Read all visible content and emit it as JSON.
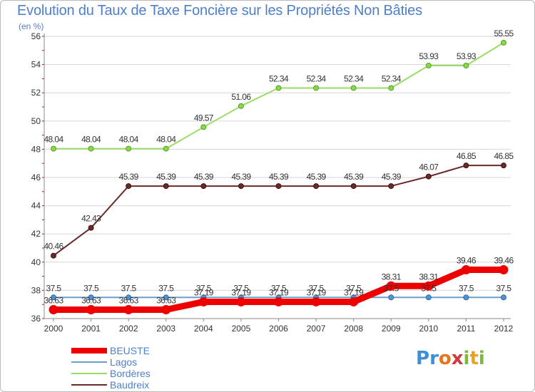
{
  "title": "Evolution du Taux de Taxe Foncière sur les Propriétés Non Bâties",
  "unit": "(en %)",
  "logo": {
    "text": "Proxiti",
    "letters": [
      "P",
      "r",
      "o",
      "x",
      "i",
      "t",
      "i"
    ],
    "colors": [
      "#3d8fd8",
      "#3d8fd8",
      "#e8741c",
      "#d23a3a",
      "#7fb83a",
      "#e8a21c",
      "#7fb83a"
    ]
  },
  "colors": {
    "BEUSTE": "#ee0000",
    "Lagos": "#6e9fc8",
    "Bordères": "#99dd66",
    "Baudreix": "#6b2a2a",
    "axis": "#888888",
    "grid": "#d7d7d7",
    "text": "#4f7fc8"
  },
  "chart_data": {
    "type": "line",
    "title": "Evolution du Taux de Taxe Foncière sur les Propriétés Non Bâties",
    "ylabel": "(en %)",
    "xlabel": "",
    "x": [
      "2000",
      "2001",
      "2002",
      "2003",
      "2004",
      "2005",
      "2006",
      "2007",
      "2008",
      "2009",
      "2010",
      "2011",
      "2012"
    ],
    "ylim": [
      36,
      56
    ],
    "yticks": [
      36,
      38,
      40,
      42,
      44,
      46,
      48,
      50,
      52,
      54,
      56
    ],
    "grid": "horizontal",
    "legend": "bottom-left",
    "series": [
      {
        "name": "BEUSTE",
        "values": [
          36.63,
          36.63,
          36.63,
          36.63,
          37.19,
          37.19,
          37.19,
          37.19,
          37.19,
          38.31,
          38.31,
          39.46,
          39.46
        ],
        "labels": [
          "36.63",
          "36.63",
          "36.63",
          "36.63",
          "37.19",
          "37.19",
          "37.19",
          "37.19",
          "37.19",
          "38.31",
          "38.31",
          "39.46",
          "39.46"
        ]
      },
      {
        "name": "Lagos",
        "values": [
          37.5,
          37.5,
          37.5,
          37.5,
          37.5,
          37.5,
          37.5,
          37.5,
          37.5,
          37.5,
          37.5,
          37.5,
          37.5
        ],
        "labels": [
          "37.5",
          "37.5",
          "37.5",
          "37.5",
          "37.5",
          "37.5",
          "37.5",
          "37.5",
          "37.5",
          "37.5",
          "37.5",
          "37.5",
          "37.5"
        ]
      },
      {
        "name": "Bordères",
        "values": [
          48.04,
          48.04,
          48.04,
          48.04,
          49.57,
          51.06,
          52.34,
          52.34,
          52.34,
          52.34,
          53.93,
          53.93,
          55.55
        ],
        "labels": [
          "48.04",
          "48.04",
          "48.04",
          "48.04",
          "49.57",
          "51.06",
          "52.34",
          "52.34",
          "52.34",
          "52.34",
          "53.93",
          "53.93",
          "55.55"
        ]
      },
      {
        "name": "Baudreix",
        "values": [
          40.46,
          42.43,
          45.39,
          45.39,
          45.39,
          45.39,
          45.39,
          45.39,
          45.39,
          45.39,
          46.07,
          46.85,
          46.85
        ],
        "labels": [
          "40.46",
          "42.43",
          "45.39",
          "45.39",
          "45.39",
          "45.39",
          "45.39",
          "45.39",
          "45.39",
          "45.39",
          "46.07",
          "46.85",
          "46.85"
        ]
      }
    ]
  }
}
